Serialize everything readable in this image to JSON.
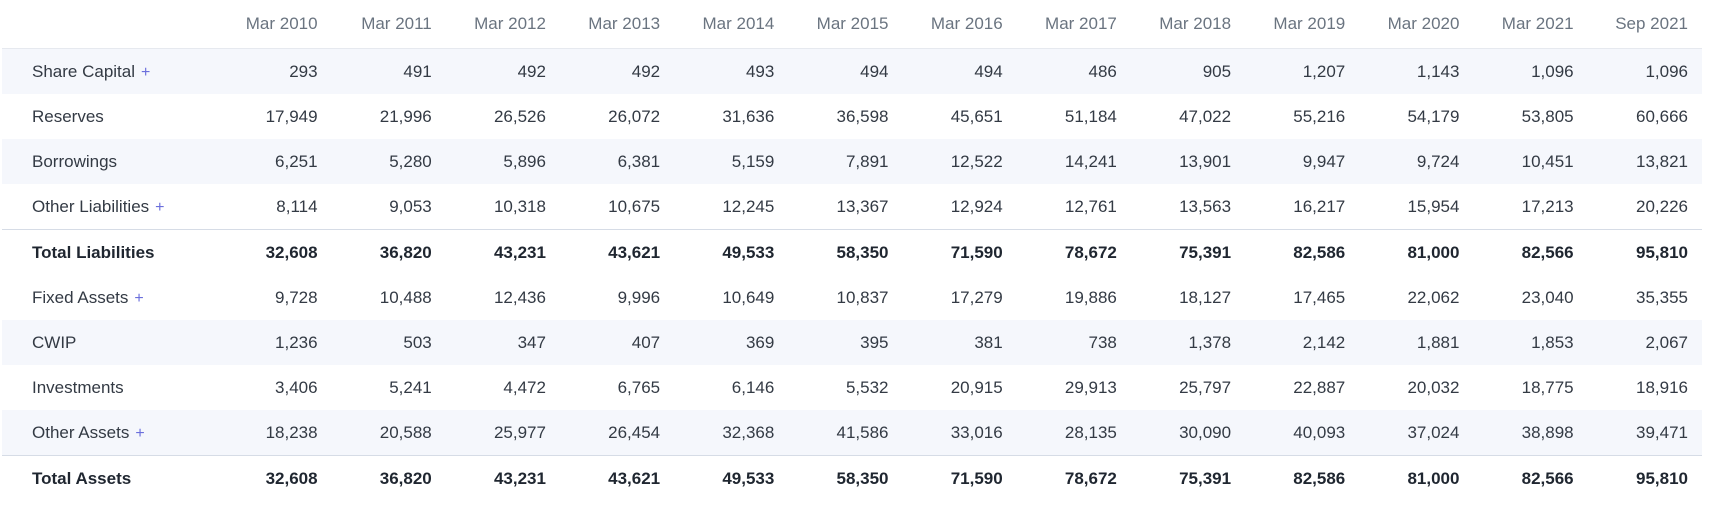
{
  "table": {
    "header": {
      "label": "",
      "periods": [
        "Mar 2010",
        "Mar 2011",
        "Mar 2012",
        "Mar 2013",
        "Mar 2014",
        "Mar 2015",
        "Mar 2016",
        "Mar 2017",
        "Mar 2018",
        "Mar 2019",
        "Mar 2020",
        "Mar 2021",
        "Sep 2021"
      ]
    },
    "rows": [
      {
        "label": "Share Capital",
        "expandable": true,
        "plus": "+",
        "total": false,
        "values": [
          "293",
          "491",
          "492",
          "492",
          "493",
          "494",
          "494",
          "486",
          "905",
          "1,207",
          "1,143",
          "1,096",
          "1,096"
        ]
      },
      {
        "label": "Reserves",
        "expandable": false,
        "plus": "",
        "total": false,
        "values": [
          "17,949",
          "21,996",
          "26,526",
          "26,072",
          "31,636",
          "36,598",
          "45,651",
          "51,184",
          "47,022",
          "55,216",
          "54,179",
          "53,805",
          "60,666"
        ]
      },
      {
        "label": "Borrowings",
        "expandable": false,
        "plus": "",
        "total": false,
        "values": [
          "6,251",
          "5,280",
          "5,896",
          "6,381",
          "5,159",
          "7,891",
          "12,522",
          "14,241",
          "13,901",
          "9,947",
          "9,724",
          "10,451",
          "13,821"
        ]
      },
      {
        "label": "Other Liabilities",
        "expandable": true,
        "plus": "+",
        "total": false,
        "values": [
          "8,114",
          "9,053",
          "10,318",
          "10,675",
          "12,245",
          "13,367",
          "12,924",
          "12,761",
          "13,563",
          "16,217",
          "15,954",
          "17,213",
          "20,226"
        ]
      },
      {
        "label": "Total Liabilities",
        "expandable": false,
        "plus": "",
        "total": true,
        "values": [
          "32,608",
          "36,820",
          "43,231",
          "43,621",
          "49,533",
          "58,350",
          "71,590",
          "78,672",
          "75,391",
          "82,586",
          "81,000",
          "82,566",
          "95,810"
        ]
      },
      {
        "label": "Fixed Assets",
        "expandable": true,
        "plus": "+",
        "total": false,
        "values": [
          "9,728",
          "10,488",
          "12,436",
          "9,996",
          "10,649",
          "10,837",
          "17,279",
          "19,886",
          "18,127",
          "17,465",
          "22,062",
          "23,040",
          "35,355"
        ]
      },
      {
        "label": "CWIP",
        "expandable": false,
        "plus": "",
        "total": false,
        "values": [
          "1,236",
          "503",
          "347",
          "407",
          "369",
          "395",
          "381",
          "738",
          "1,378",
          "2,142",
          "1,881",
          "1,853",
          "2,067"
        ]
      },
      {
        "label": "Investments",
        "expandable": false,
        "plus": "",
        "total": false,
        "values": [
          "3,406",
          "5,241",
          "4,472",
          "6,765",
          "6,146",
          "5,532",
          "20,915",
          "29,913",
          "25,797",
          "22,887",
          "20,032",
          "18,775",
          "18,916"
        ]
      },
      {
        "label": "Other Assets",
        "expandable": true,
        "plus": "+",
        "total": false,
        "values": [
          "18,238",
          "20,588",
          "25,977",
          "26,454",
          "32,368",
          "41,586",
          "33,016",
          "28,135",
          "30,090",
          "40,093",
          "37,024",
          "38,898",
          "39,471"
        ]
      },
      {
        "label": "Total Assets",
        "expandable": false,
        "plus": "",
        "total": true,
        "values": [
          "32,608",
          "36,820",
          "43,231",
          "43,621",
          "49,533",
          "58,350",
          "71,590",
          "78,672",
          "75,391",
          "82,586",
          "81,000",
          "82,566",
          "95,810"
        ]
      }
    ]
  },
  "colors": {
    "stripe": "#f5f7fc",
    "header_text": "#6a7480",
    "plus_accent": "#6b6fdc",
    "divider": "#d6dce6"
  }
}
